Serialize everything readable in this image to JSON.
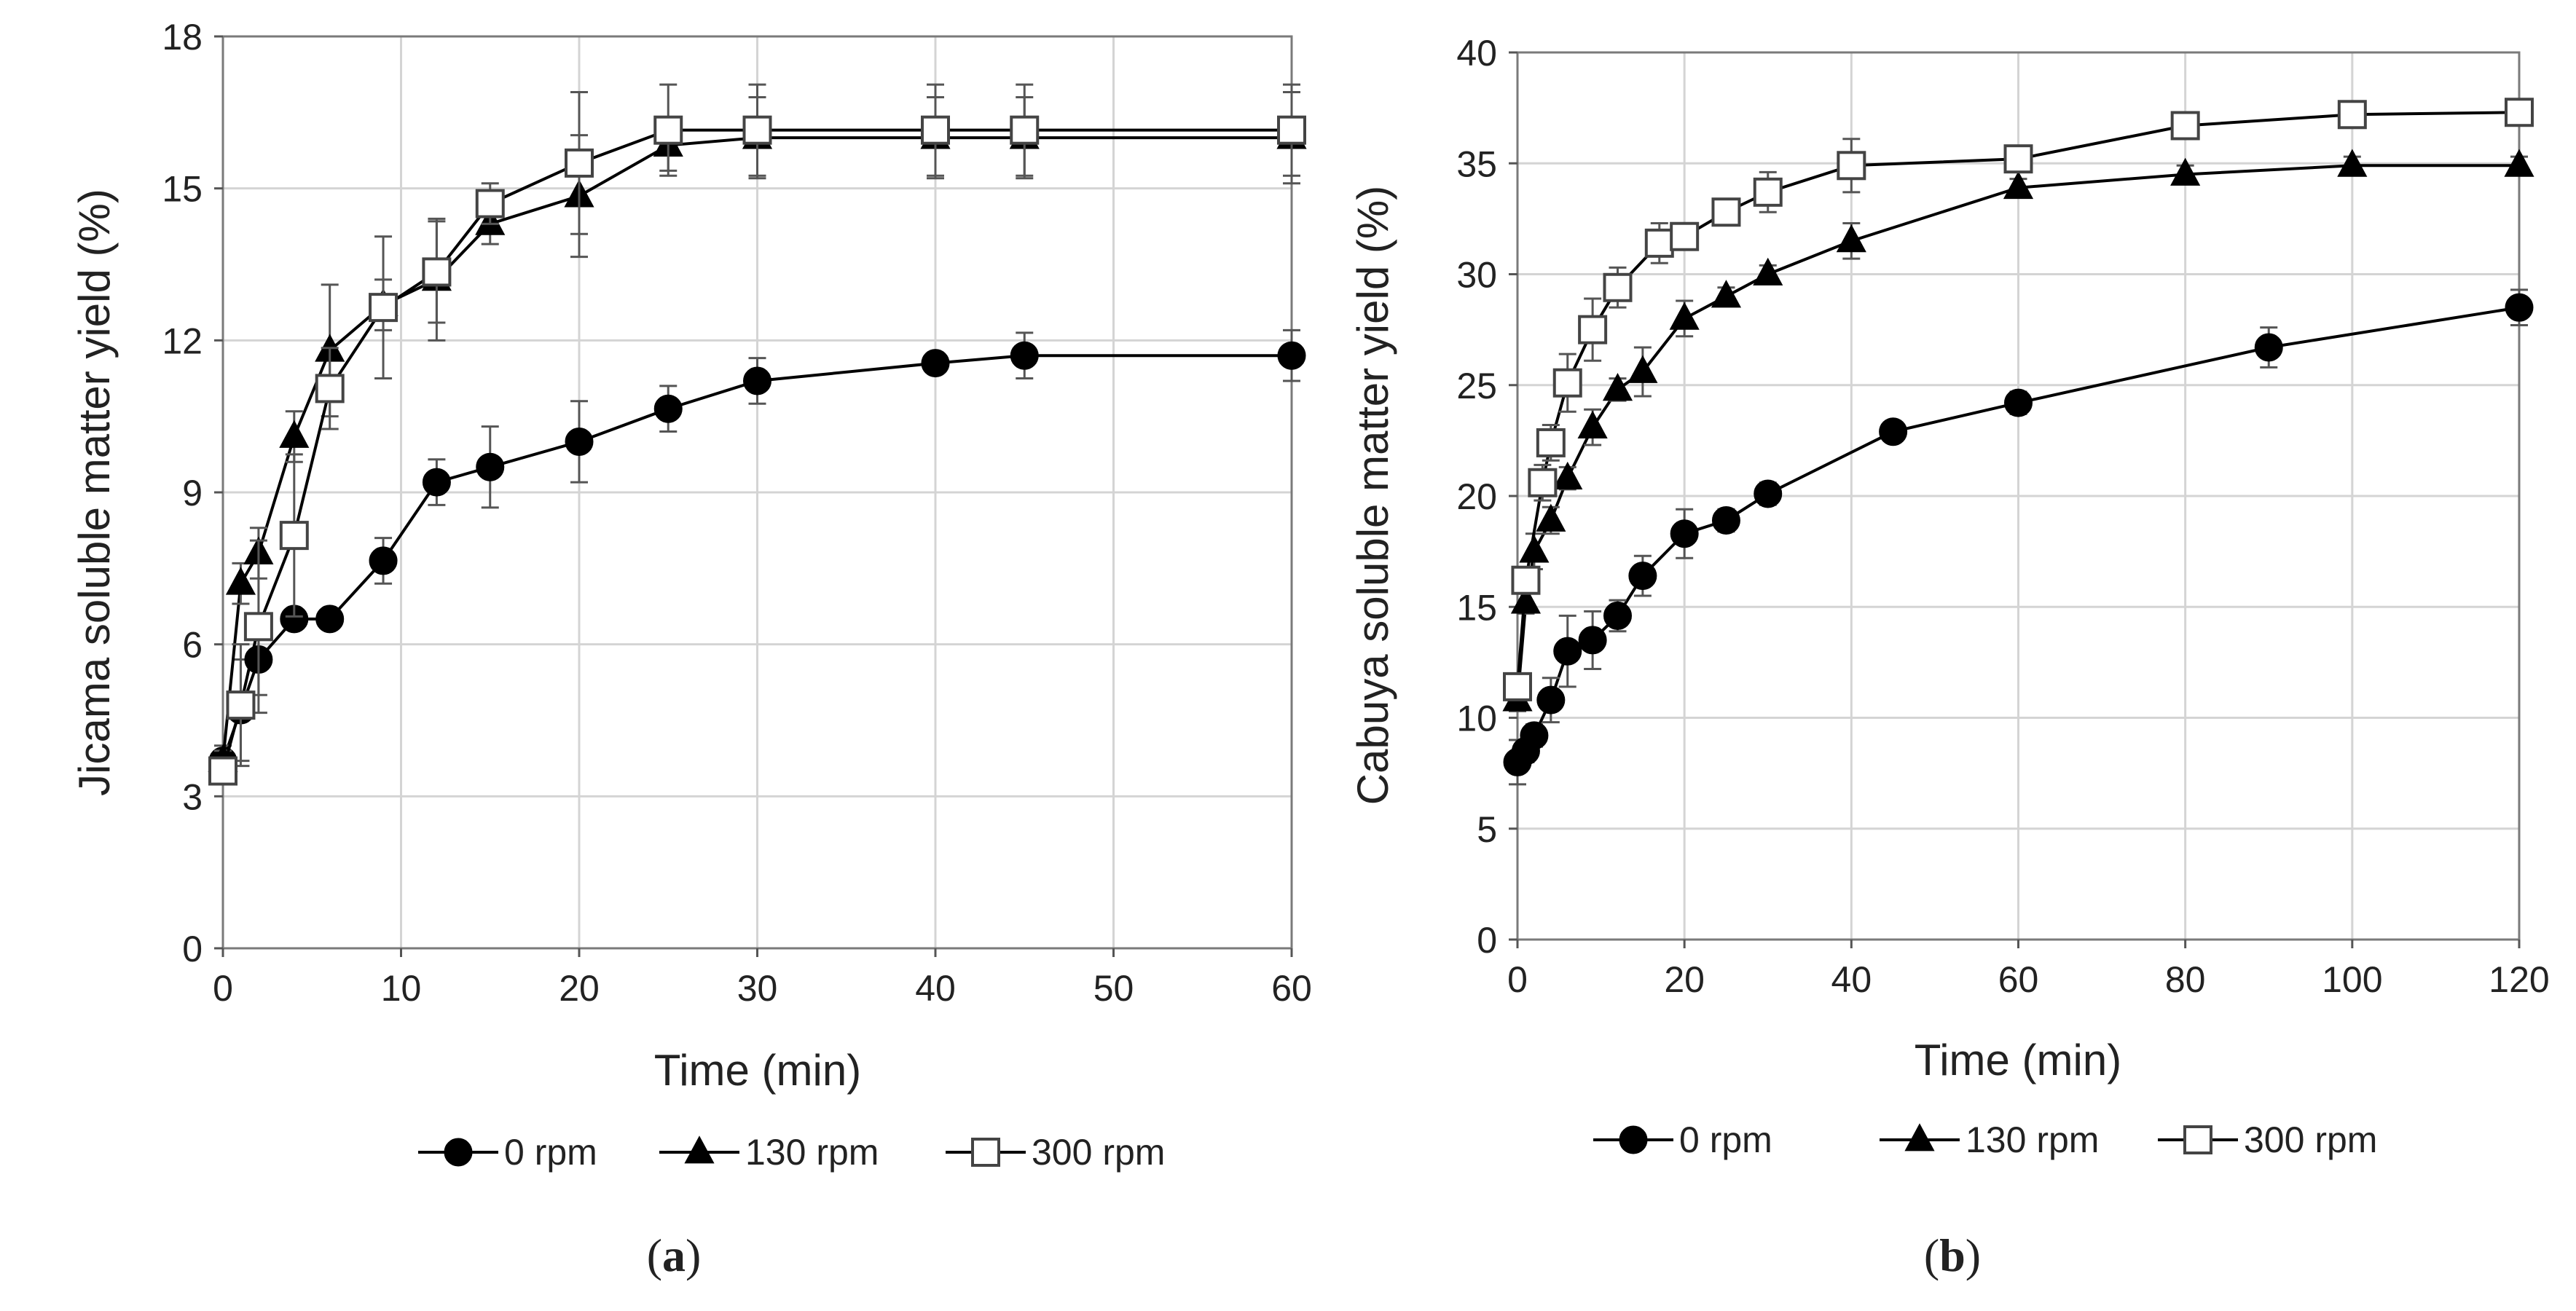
{
  "chart_data": [
    {
      "type": "line",
      "panel_label": "a",
      "title": "",
      "xlabel": "Time (min)",
      "ylabel": "Jicama soluble matter yield (%)",
      "xlim": [
        0,
        60
      ],
      "ylim": [
        0,
        18
      ],
      "xticks": [
        0,
        10,
        20,
        30,
        40,
        50,
        60
      ],
      "yticks": [
        0,
        3,
        6,
        9,
        12,
        15,
        18
      ],
      "grid": true,
      "legend_position": "bottom",
      "series": [
        {
          "name": "0 rpm",
          "marker": "circle",
          "color": "#000000",
          "fill": "#000000",
          "x": [
            0,
            1,
            2,
            4,
            6,
            9,
            12,
            15,
            20,
            25,
            30,
            40,
            45,
            60
          ],
          "y": [
            3.7,
            4.7,
            5.7,
            6.5,
            6.5,
            7.65,
            9.2,
            9.5,
            10.0,
            10.65,
            11.2,
            11.55,
            11.7,
            11.7
          ],
          "err": [
            0.3,
            1.0,
            0.7,
            0,
            0,
            0.45,
            0.45,
            0.8,
            0.8,
            0.45,
            0.45,
            0,
            0.45,
            0.5
          ]
        },
        {
          "name": "130 rpm",
          "marker": "triangle",
          "color": "#000000",
          "fill": "#000000",
          "x": [
            0,
            1,
            2,
            4,
            6,
            9,
            12,
            15,
            20,
            25,
            30,
            40,
            45,
            60
          ],
          "y": [
            3.7,
            7.2,
            7.8,
            10.1,
            11.8,
            12.7,
            13.2,
            14.3,
            14.85,
            15.85,
            16.0,
            16.0,
            16.0,
            16.0
          ],
          "err": [
            0.2,
            0.4,
            0.5,
            0.5,
            1.3,
            0.5,
            1.2,
            0.4,
            1.2,
            0.5,
            0.8,
            0.8,
            0.8,
            0.9
          ]
        },
        {
          "name": "300 rpm",
          "marker": "square",
          "color": "#000000",
          "fill": "#ffffff",
          "x": [
            0,
            1,
            2,
            4,
            6,
            9,
            12,
            15,
            20,
            25,
            30,
            40,
            45,
            60
          ],
          "y": [
            3.5,
            4.8,
            6.35,
            8.15,
            11.05,
            12.65,
            13.35,
            14.7,
            15.5,
            16.15,
            16.15,
            16.15,
            16.15,
            16.15
          ],
          "err": [
            0.2,
            1.2,
            1.7,
            1.6,
            0.8,
            1.4,
            1.0,
            0.4,
            1.4,
            0.9,
            0.9,
            0.9,
            0.9,
            0.9
          ]
        }
      ]
    },
    {
      "type": "line",
      "panel_label": "b",
      "title": "",
      "xlabel": "Time (min)",
      "ylabel": "Cabuya soluble matter yield (%)",
      "xlim": [
        0,
        120
      ],
      "ylim": [
        0,
        40
      ],
      "xticks": [
        0,
        20,
        40,
        60,
        80,
        100,
        120
      ],
      "yticks": [
        0,
        5,
        10,
        15,
        20,
        25,
        30,
        35,
        40
      ],
      "grid": true,
      "legend_position": "bottom",
      "series": [
        {
          "name": "0 rpm",
          "marker": "circle",
          "color": "#000000",
          "fill": "#000000",
          "x": [
            0,
            1,
            2,
            4,
            6,
            9,
            12,
            15,
            20,
            25,
            30,
            45,
            60,
            90,
            120
          ],
          "y": [
            8.0,
            8.5,
            9.2,
            10.8,
            13.0,
            13.5,
            14.6,
            16.4,
            18.3,
            18.9,
            20.1,
            22.9,
            24.2,
            26.7,
            28.5
          ],
          "err": [
            1.0,
            0.5,
            0.5,
            1.0,
            1.6,
            1.3,
            0.7,
            0.9,
            1.1,
            0.5,
            0.5,
            0.4,
            0.5,
            0.9,
            0.8
          ]
        },
        {
          "name": "130 rpm",
          "marker": "triangle",
          "color": "#000000",
          "fill": "#000000",
          "x": [
            0,
            1,
            2,
            4,
            6,
            9,
            12,
            15,
            20,
            25,
            30,
            40,
            60,
            80,
            100,
            120
          ],
          "y": [
            10.8,
            15.2,
            17.5,
            18.9,
            20.8,
            23.1,
            24.8,
            25.6,
            28.0,
            29.0,
            30.0,
            31.5,
            33.9,
            34.5,
            34.9,
            34.9
          ],
          "err": [
            0.5,
            0.5,
            0.8,
            0.6,
            0.5,
            0.8,
            0.5,
            1.1,
            0.8,
            0.4,
            0.4,
            0.8,
            0.4,
            0.4,
            0.4,
            0.4
          ]
        },
        {
          "name": "300 rpm",
          "marker": "square",
          "color": "#000000",
          "fill": "#ffffff",
          "x": [
            0,
            1,
            3,
            4,
            6,
            9,
            12,
            17,
            20,
            25,
            30,
            40,
            60,
            80,
            100,
            120
          ],
          "y": [
            11.4,
            16.2,
            20.6,
            22.4,
            25.1,
            27.5,
            29.4,
            31.4,
            31.7,
            32.8,
            33.7,
            34.9,
            35.2,
            36.7,
            37.2,
            37.3
          ],
          "err": [
            0.5,
            0.5,
            0.8,
            0.8,
            1.3,
            1.4,
            0.9,
            0.9,
            0.5,
            0.4,
            0.9,
            1.2,
            0.4,
            0.4,
            0.4,
            0.4
          ]
        }
      ]
    }
  ]
}
